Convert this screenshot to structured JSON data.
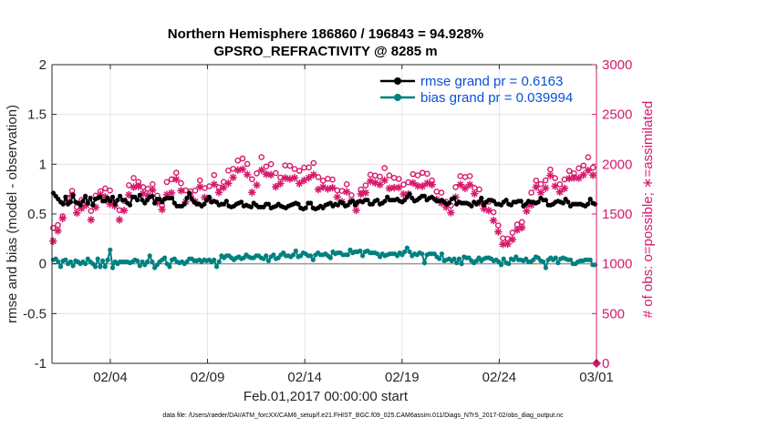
{
  "chart_data": {
    "type": "line",
    "title_line1": "Northern Hemisphere 186860 / 196843 = 94.928%",
    "title_line2": "GPSRO_REFRACTIVITY @ 8285 m",
    "xlabel": "Feb.01,2017 00:00:00 start",
    "ylabel_left": "rmse and bias (model - observation)",
    "ylabel_right": "# of obs: o=possible; ∗=assimilated",
    "footnote": "data file: /Users/raeder/DAI/ATM_forcXX/CAM6_setup/f.e21.FHIST_BGC.f09_025.CAM6assim.011/Diags_NTrS_2017-02/obs_diag_output.nc",
    "xlim": [
      0,
      28
    ],
    "ylim_left": [
      -1,
      2
    ],
    "ylim_right": [
      0,
      3000
    ],
    "x_ticks": [
      3,
      8,
      13,
      18,
      23,
      28
    ],
    "x_tick_labels": [
      "02/04",
      "02/09",
      "02/14",
      "02/19",
      "02/24",
      "03/01"
    ],
    "y_ticks_left": [
      -1,
      -0.5,
      0,
      0.5,
      1,
      1.5,
      2
    ],
    "y_tick_labels_left": [
      "-1",
      "-0.5",
      "0",
      "0.5",
      "1",
      "1.5",
      "2"
    ],
    "y_ticks_right": [
      0,
      500,
      1000,
      1500,
      2000,
      2500,
      3000
    ],
    "y_tick_labels_right": [
      "0",
      "500",
      "1000",
      "1500",
      "2000",
      "2500",
      "3000"
    ],
    "grid": true,
    "legend_position": "top-right",
    "legend": [
      "rmse grand pr = 0.6163",
      "bias grand pr = 0.039994"
    ],
    "colors": {
      "rmse": "#000000",
      "bias": "#008080",
      "obs": "#d6196b",
      "legend_text": "#0a50d6",
      "zero_line": "#999999"
    },
    "rmse": [
      0.71,
      0.68,
      0.65,
      0.62,
      0.6,
      0.67,
      0.6,
      0.62,
      0.69,
      0.62,
      0.61,
      0.59,
      0.63,
      0.68,
      0.61,
      0.66,
      0.59,
      0.65,
      0.66,
      0.67,
      0.63,
      0.63,
      0.66,
      0.63,
      0.67,
      0.6,
      0.64,
      0.68,
      0.64,
      0.64,
      0.61,
      0.59,
      0.67,
      0.67,
      0.64,
      0.69,
      0.64,
      0.61,
      0.64,
      0.67,
      0.68,
      0.61,
      0.65,
      0.65,
      0.62,
      0.65,
      0.66,
      0.66,
      0.66,
      0.61,
      0.58,
      0.58,
      0.58,
      0.6,
      0.66,
      0.71,
      0.65,
      0.62,
      0.6,
      0.6,
      0.58,
      0.6,
      0.64,
      0.67,
      0.62,
      0.63,
      0.62,
      0.59,
      0.6,
      0.6,
      0.63,
      0.58,
      0.57,
      0.58,
      0.6,
      0.61,
      0.62,
      0.58,
      0.59,
      0.58,
      0.57,
      0.61,
      0.59,
      0.57,
      0.57,
      0.57,
      0.6,
      0.6,
      0.56,
      0.57,
      0.58,
      0.6,
      0.58,
      0.57,
      0.56,
      0.58,
      0.59,
      0.6,
      0.61,
      0.6,
      0.56,
      0.55,
      0.56,
      0.61,
      0.61,
      0.56,
      0.55,
      0.56,
      0.58,
      0.56,
      0.59,
      0.6,
      0.61,
      0.58,
      0.6,
      0.59,
      0.62,
      0.61,
      0.58,
      0.59,
      0.62,
      0.63,
      0.59,
      0.62,
      0.63,
      0.62,
      0.64,
      0.64,
      0.6,
      0.6,
      0.63,
      0.64,
      0.6,
      0.61,
      0.63,
      0.67,
      0.64,
      0.64,
      0.64,
      0.65,
      0.63,
      0.62,
      0.64,
      0.67,
      0.7,
      0.66,
      0.63,
      0.64,
      0.66,
      0.68,
      0.68,
      0.64,
      0.66,
      0.67,
      0.65,
      0.63,
      0.63,
      0.64,
      0.62,
      0.6,
      0.61,
      0.65,
      0.66,
      0.6,
      0.62,
      0.61,
      0.61,
      0.61,
      0.6,
      0.58,
      0.62,
      0.6,
      0.62,
      0.66,
      0.59,
      0.62,
      0.64,
      0.64,
      0.63,
      0.6,
      0.6,
      0.59,
      0.62,
      0.64,
      0.6,
      0.59,
      0.62,
      0.62,
      0.63,
      0.63,
      0.58,
      0.6,
      0.63,
      0.62,
      0.62,
      0.61,
      0.62,
      0.66,
      0.64,
      0.64,
      0.59,
      0.59,
      0.6,
      0.62,
      0.63,
      0.62,
      0.61,
      0.65,
      0.62,
      0.58,
      0.6,
      0.6,
      0.6,
      0.6,
      0.59,
      0.58,
      0.6,
      0.65,
      0.61,
      0.6
    ],
    "bias": [
      0.04,
      0.05,
      0.02,
      -0.03,
      0.03,
      0.04,
      0.0,
      0.02,
      -0.02,
      0.03,
      0.02,
      0.0,
      0.02,
      0.0,
      0.05,
      0.02,
      0.0,
      -0.03,
      0.05,
      -0.03,
      0.03,
      -0.03,
      0.04,
      0.14,
      -0.04,
      0.02,
      0.0,
      0.02,
      0.02,
      0.02,
      0.02,
      0.01,
      0.02,
      0.04,
      0.03,
      -0.02,
      0.02,
      -0.01,
      0.02,
      0.08,
      0.02,
      -0.04,
      -0.01,
      0.02,
      0.04,
      0.06,
      0.0,
      -0.03,
      0.04,
      0.05,
      0.02,
      0.01,
      0.02,
      0.0,
      0.02,
      0.05,
      0.05,
      0.03,
      0.03,
      0.04,
      0.02,
      0.04,
      0.03,
      0.04,
      0.02,
      0.04,
      -0.03,
      0.02,
      0.08,
      0.06,
      0.08,
      0.08,
      0.06,
      0.04,
      0.06,
      0.07,
      0.05,
      0.06,
      0.09,
      0.07,
      0.06,
      0.06,
      0.08,
      0.08,
      0.06,
      0.05,
      0.08,
      0.03,
      0.07,
      0.09,
      0.05,
      0.06,
      0.09,
      0.11,
      0.08,
      0.08,
      0.07,
      0.09,
      0.13,
      0.07,
      0.08,
      0.11,
      0.1,
      0.08,
      0.08,
      0.04,
      0.09,
      0.11,
      0.09,
      0.09,
      0.1,
      0.08,
      0.06,
      0.12,
      0.1,
      0.11,
      0.11,
      0.09,
      0.09,
      0.09,
      0.14,
      0.11,
      0.12,
      0.12,
      0.13,
      0.08,
      0.12,
      0.13,
      0.11,
      0.11,
      0.11,
      0.1,
      0.07,
      0.1,
      0.08,
      0.09,
      0.1,
      0.1,
      0.1,
      0.08,
      0.11,
      0.09,
      0.12,
      0.16,
      0.12,
      0.08,
      0.1,
      0.09,
      0.11,
      0.1,
      0.01,
      0.09,
      0.1,
      0.1,
      0.1,
      0.07,
      0.05,
      0.1,
      0.03,
      0.04,
      0.05,
      0.03,
      0.05,
      0.01,
      0.05,
      0.0,
      0.07,
      0.06,
      0.06,
      0.03,
      0.01,
      0.03,
      0.06,
      0.03,
      0.05,
      0.06,
      0.06,
      0.05,
      0.03,
      0.04,
      0.02,
      -0.01,
      0.05,
      0.01,
      0.0,
      0.05,
      0.04,
      0.07,
      0.04,
      0.04,
      0.03,
      0.05,
      0.02,
      0.02,
      0.04,
      0.07,
      0.06,
      0.03,
      0.02,
      -0.04,
      0.04,
      0.06,
      0.04,
      0.06,
      0.01,
      0.05,
      0.06,
      0.05,
      0.04,
      0.04,
      0.0,
      0.0,
      0.02,
      0.03,
      0.03,
      0.04,
      0.04,
      0.04,
      -0.01,
      -0.01
    ],
    "obs_possible": [
      1360,
      1318,
      1389,
      1582,
      1477,
      1458,
      1661,
      1703,
      1732,
      1573,
      1569,
      1679,
      1641,
      1656,
      1624,
      1535,
      1530,
      1535,
      1685,
      1723,
      1728,
      1710,
      1757,
      1631,
      1736,
      1661,
      1616,
      1623,
      1538,
      1569,
      1631,
      1648,
      1789,
      1889,
      1862,
      1825,
      1822,
      1786,
      1770,
      1768,
      1753,
      1805,
      1799,
      1701,
      1684,
      1619,
      1588,
      1671,
      1821,
      1826,
      1849,
      1919,
      1914,
      1901,
      1809,
      1773,
      1737,
      1742,
      1727,
      1719,
      1735,
      1829,
      1837,
      1765,
      1760,
      1720,
      1779,
      1795,
      1891,
      1842,
      1767,
      1706,
      1822,
      1837,
      1936,
      1924,
      1954,
      1974,
      2037,
      2049,
      2057,
      1999,
      2003,
      1930,
      1849,
      1976,
      1908,
      2053,
      2071,
      2028,
      1977,
      1987,
      2001,
      1952,
      1911,
      1836,
      1867,
      1971,
      1988,
      1919,
      1984,
      1986,
      1952,
      1939,
      1933,
      1928,
      1966,
      1915,
      1967,
      1961,
      2012,
      1987,
      1870,
      1792,
      1835,
      1805,
      1854,
      1837,
      1846,
      1815,
      1737,
      1773,
      1732,
      1720,
      1799,
      1743,
      1688,
      1594,
      1599,
      1704,
      1747,
      1741,
      1788,
      1835,
      1895,
      1924,
      1886,
      1907,
      1875,
      1893,
      1961,
      1916,
      1887,
      1845,
      1863,
      1828,
      1852,
      1790,
      1796,
      1705,
      1819,
      1843,
      1901,
      1875,
      1888,
      1862,
      1914,
      1933,
      1904,
      1889,
      1837,
      1830,
      1725,
      1715,
      1714,
      1662,
      1623,
      1624,
      1585,
      1727,
      1770,
      1791,
      1880,
      1906,
      1871,
      1894,
      1880,
      1802,
      1761,
      1770,
      1747,
      1740,
      1608,
      1629,
      1623,
      1632,
      1518,
      1400,
      1385,
      1283,
      1256,
      1278,
      1252,
      1344,
      1312,
      1398,
      1394,
      1468,
      1419,
      1571,
      1590,
      1705,
      1715,
      1796,
      1836,
      1767,
      1801,
      1805,
      1838,
      1940,
      1947,
      1893,
      1860,
      1804,
      1798,
      1829,
      1847,
      1914,
      1932,
      1941,
      1909,
      1934,
      1959,
      1972,
      1987,
      2051,
      2070,
      1987,
      1966,
      2022
    ],
    "obs_assimilated": [
      1228,
      1235,
      1331,
      1485,
      1456,
      1393,
      1620,
      1643,
      1687,
      1475,
      1511,
      1609,
      1557,
      1554,
      1590,
      1472,
      1442,
      1501,
      1567,
      1672,
      1694,
      1594,
      1671,
      1591,
      1599,
      1559,
      1582,
      1569,
      1441,
      1448,
      1535,
      1588,
      1692,
      1799,
      1770,
      1695,
      1778,
      1749,
      1706,
      1708,
      1686,
      1706,
      1741,
      1626,
      1614,
      1576,
      1544,
      1601,
      1695,
      1715,
      1712,
      1803,
      1848,
      1798,
      1734,
      1629,
      1623,
      1619,
      1677,
      1619,
      1625,
      1700,
      1772,
      1669,
      1665,
      1668,
      1642,
      1710,
      1798,
      1744,
      1717,
      1656,
      1765,
      1730,
      1808,
      1854,
      1867,
      1893,
      1941,
      1928,
      1950,
      1896,
      1896,
      1839,
      1717,
      1890,
      1790,
      1985,
      1941,
      1965,
      1900,
      1880,
      1894,
      1865,
      1773,
      1779,
      1806,
      1870,
      1862,
      1795,
      1852,
      1887,
      1863,
      1824,
      1806,
      1808,
      1838,
      1799,
      1864,
      1878,
      1895,
      1848,
      1745,
      1696,
      1770,
      1727,
      1752,
      1790,
      1763,
      1688,
      1670,
      1691,
      1622,
      1675,
      1723,
      1688,
      1631,
      1526,
      1537,
      1611,
      1700,
      1672,
      1714,
      1780,
      1829,
      1846,
      1813,
      1846,
      1795,
      1827,
      1838,
      1818,
      1757,
      1742,
      1764,
      1735,
      1766,
      1706,
      1699,
      1576,
      1701,
      1781,
      1812,
      1807,
      1782,
      1766,
      1779,
      1841,
      1809,
      1843,
      1795,
      1767,
      1647,
      1658,
      1611,
      1590,
      1569,
      1511,
      1514,
      1587,
      1668,
      1714,
      1795,
      1865,
      1758,
      1841,
      1794,
      1671,
      1704,
      1648,
      1613,
      1621,
      1552,
      1575,
      1535,
      1570,
      1435,
      1323,
      1321,
      1229,
      1196,
      1192,
      1199,
      1225,
      1245,
      1310,
      1340,
      1374,
      1363,
      1476,
      1529,
      1613,
      1591,
      1684,
      1771,
      1730,
      1716,
      1695,
      1760,
      1876,
      1887,
      1789,
      1780,
      1717,
      1722,
      1731,
      1757,
      1848,
      1857,
      1845,
      1862,
      1861,
      1860,
      1841,
      1894,
      1980,
      1938,
      1944,
      1890,
      1931
    ]
  }
}
